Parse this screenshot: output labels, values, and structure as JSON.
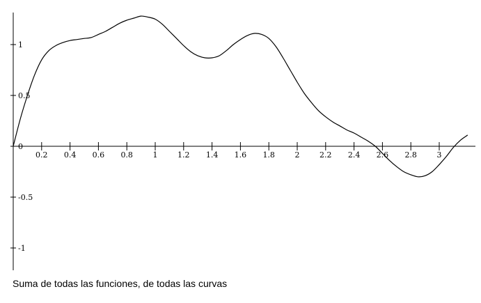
{
  "caption": "Suma de todas las funciones, de todas las curvas",
  "chart_data": {
    "type": "line",
    "title": "",
    "xlabel": "",
    "ylabel": "",
    "xlim": [
      0,
      3.2
    ],
    "ylim": [
      -1.2,
      1.3
    ],
    "grid": false,
    "x_ticks": [
      0.2,
      0.4,
      0.6,
      0.8,
      1,
      1.2,
      1.4,
      1.6,
      1.8,
      2,
      2.2,
      2.4,
      2.6,
      2.8,
      3
    ],
    "x_tick_labels": [
      "0.2",
      "0.4",
      "0.6",
      "0.8",
      "1",
      "1.2",
      "1.4",
      "1.6",
      "1.8",
      "2",
      "2.2",
      "2.4",
      "2.6",
      "2.8",
      "3"
    ],
    "y_ticks": [
      -1,
      -0.5,
      0,
      0.5,
      1
    ],
    "y_tick_labels": [
      "-1",
      "-0.5",
      "0",
      "0.5",
      "1"
    ],
    "series": [
      {
        "color": "#000000",
        "x": [
          0,
          0.05,
          0.1,
          0.15,
          0.2,
          0.25,
          0.3,
          0.35,
          0.4,
          0.45,
          0.5,
          0.55,
          0.6,
          0.65,
          0.7,
          0.75,
          0.8,
          0.85,
          0.9,
          0.95,
          1.0,
          1.05,
          1.1,
          1.15,
          1.2,
          1.25,
          1.3,
          1.35,
          1.4,
          1.45,
          1.5,
          1.55,
          1.6,
          1.65,
          1.7,
          1.75,
          1.8,
          1.85,
          1.9,
          1.95,
          2.0,
          2.05,
          2.1,
          2.15,
          2.2,
          2.25,
          2.3,
          2.35,
          2.4,
          2.45,
          2.5,
          2.55,
          2.6,
          2.65,
          2.7,
          2.75,
          2.8,
          2.85,
          2.9,
          2.95,
          3.0,
          3.05,
          3.1,
          3.15,
          3.2
        ],
        "y": [
          0,
          0.27,
          0.5,
          0.7,
          0.85,
          0.94,
          0.99,
          1.02,
          1.04,
          1.05,
          1.06,
          1.07,
          1.1,
          1.13,
          1.17,
          1.21,
          1.24,
          1.26,
          1.28,
          1.27,
          1.25,
          1.2,
          1.13,
          1.06,
          0.99,
          0.93,
          0.89,
          0.87,
          0.87,
          0.89,
          0.94,
          1.0,
          1.05,
          1.09,
          1.11,
          1.1,
          1.06,
          0.98,
          0.87,
          0.75,
          0.63,
          0.52,
          0.43,
          0.35,
          0.29,
          0.24,
          0.2,
          0.16,
          0.13,
          0.09,
          0.05,
          0.0,
          -0.07,
          -0.14,
          -0.2,
          -0.25,
          -0.28,
          -0.3,
          -0.29,
          -0.25,
          -0.18,
          -0.1,
          -0.01,
          0.06,
          0.11
        ]
      }
    ]
  }
}
